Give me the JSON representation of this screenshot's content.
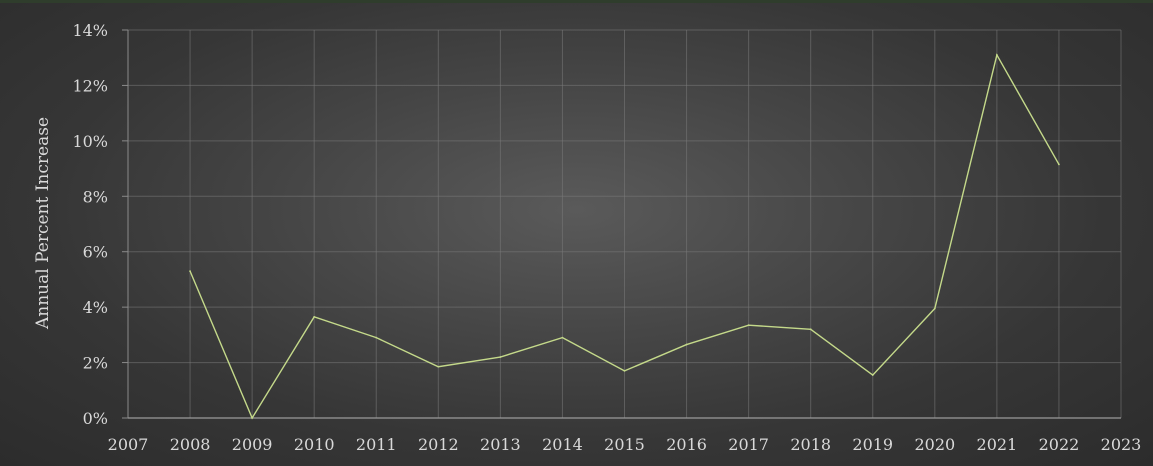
{
  "chart_data": {
    "type": "line",
    "title": "",
    "xlabel": "",
    "ylabel": "Annual Percent Increase",
    "x": [
      2008,
      2009,
      2010,
      2011,
      2012,
      2013,
      2014,
      2015,
      2016,
      2017,
      2018,
      2019,
      2020,
      2021,
      2022
    ],
    "series": [
      {
        "values": [
          5.3,
          0.0,
          3.65,
          2.9,
          1.85,
          2.2,
          2.9,
          1.7,
          2.65,
          3.35,
          3.2,
          1.55,
          3.95,
          13.1,
          9.15
        ]
      }
    ],
    "xlim": [
      2007,
      2023
    ],
    "ylim": [
      0,
      14
    ],
    "x_ticks": [
      "2007",
      "2008",
      "2009",
      "2010",
      "2011",
      "2012",
      "2013",
      "2014",
      "2015",
      "2016",
      "2017",
      "2018",
      "2019",
      "2020",
      "2021",
      "2022",
      "2023"
    ],
    "y_ticks": [
      "0%",
      "2%",
      "4%",
      "6%",
      "8%",
      "10%",
      "12%",
      "14%"
    ],
    "grid": true,
    "legend": "none",
    "line_color": "#c4d98a"
  }
}
